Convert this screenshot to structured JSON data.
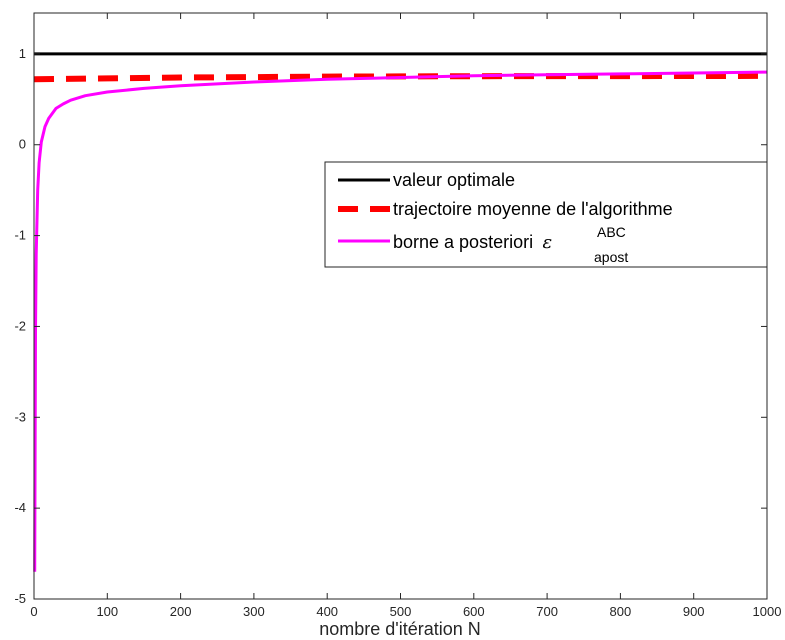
{
  "chart_data": {
    "type": "line",
    "xlabel": "nombre d'itération N",
    "ylabel": "",
    "xlim": [
      0,
      1000
    ],
    "ylim": [
      -5,
      1.45
    ],
    "x_ticks": [
      0,
      100,
      200,
      300,
      400,
      500,
      600,
      700,
      800,
      900,
      1000
    ],
    "y_ticks": [
      -5,
      -4,
      -3,
      -2,
      -1,
      0,
      1
    ],
    "grid": false,
    "legend_position": "right",
    "series": [
      {
        "name": "valeur optimale",
        "color": "#000000",
        "style": "solid",
        "x": [
          0,
          1000
        ],
        "y": [
          1,
          1
        ]
      },
      {
        "name": "trajectoire moyenne de l'algorithme",
        "color": "#ff0000",
        "style": "dashed",
        "x": [
          0,
          100,
          200,
          300,
          400,
          500,
          600,
          700,
          800,
          900,
          1000
        ],
        "y": [
          0.72,
          0.73,
          0.74,
          0.745,
          0.75,
          0.752,
          0.754,
          0.755,
          0.756,
          0.757,
          0.758
        ]
      },
      {
        "name_prefix": "borne a posteriori",
        "name_symbol": "ε",
        "name_sup": "ABC",
        "name_sub": "apost",
        "color": "#ff00ff",
        "style": "solid",
        "x": [
          1,
          2,
          3,
          5,
          7,
          10,
          15,
          20,
          30,
          40,
          50,
          70,
          100,
          150,
          200,
          300,
          400,
          500,
          600,
          700,
          800,
          900,
          1000
        ],
        "y": [
          -4.7,
          -2.05,
          -1.2,
          -0.5,
          -0.2,
          0.03,
          0.2,
          0.29,
          0.4,
          0.45,
          0.49,
          0.54,
          0.58,
          0.62,
          0.65,
          0.69,
          0.72,
          0.74,
          0.76,
          0.77,
          0.78,
          0.79,
          0.8
        ]
      }
    ]
  }
}
